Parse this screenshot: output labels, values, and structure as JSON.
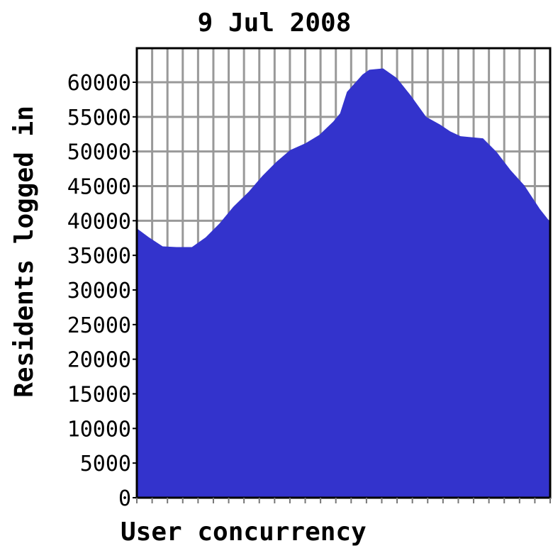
{
  "chart_data": {
    "type": "area",
    "title": "9 Jul 2008",
    "xlabel": "User concurrency",
    "ylabel": "Residents logged in",
    "xlim": [
      0,
      24
    ],
    "ylim": [
      0,
      65000
    ],
    "yticks": [
      0,
      5000,
      10000,
      15000,
      20000,
      25000,
      30000,
      35000,
      40000,
      45000,
      50000,
      55000,
      60000
    ],
    "grid": true,
    "fill_color": "#3333cc",
    "grid_color": "#999999",
    "series": [
      {
        "x": [
          0,
          0.7,
          1.5,
          2.3,
          3.2,
          4.0,
          4.8,
          5.6,
          6.5,
          7.3,
          8.1,
          8.9,
          9.8,
          10.6,
          11.4,
          11.8,
          12.2,
          13.1,
          13.5,
          14.3,
          15.1,
          15.9,
          16.8,
          17.6,
          18.2,
          18.8,
          20.1,
          20.9,
          21.7,
          22.5,
          23.4,
          24
        ],
        "y": [
          38900,
          37600,
          36300,
          36200,
          36200,
          37600,
          39600,
          42000,
          44200,
          46500,
          48500,
          50200,
          51200,
          52400,
          54300,
          55500,
          58600,
          61100,
          61800,
          62000,
          60600,
          58100,
          55000,
          53900,
          52900,
          52200,
          51900,
          49900,
          47300,
          45100,
          41700,
          39800
        ]
      }
    ]
  }
}
